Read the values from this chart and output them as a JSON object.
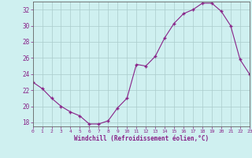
{
  "x": [
    0,
    1,
    2,
    3,
    4,
    5,
    6,
    7,
    8,
    9,
    10,
    11,
    12,
    13,
    14,
    15,
    16,
    17,
    18,
    19,
    20,
    21,
    22,
    23
  ],
  "y": [
    23.0,
    22.2,
    21.0,
    20.0,
    19.3,
    18.8,
    17.8,
    17.8,
    18.2,
    19.8,
    21.0,
    25.2,
    25.0,
    26.2,
    28.5,
    30.3,
    31.5,
    32.0,
    32.8,
    32.8,
    31.8,
    30.0,
    25.8,
    24.0
  ],
  "line_color": "#882288",
  "marker": "D",
  "marker_size": 2.2,
  "bg_color": "#cff0f0",
  "grid_color": "#aacccc",
  "xlabel": "Windchill (Refroidissement éolien,°C)",
  "ylabel_ticks": [
    18,
    20,
    22,
    24,
    26,
    28,
    30,
    32
  ],
  "xticks": [
    0,
    1,
    2,
    3,
    4,
    5,
    6,
    7,
    8,
    9,
    10,
    11,
    12,
    13,
    14,
    15,
    16,
    17,
    18,
    19,
    20,
    21,
    22,
    23
  ],
  "xlim": [
    0,
    23
  ],
  "ylim": [
    17.5,
    33.0
  ]
}
